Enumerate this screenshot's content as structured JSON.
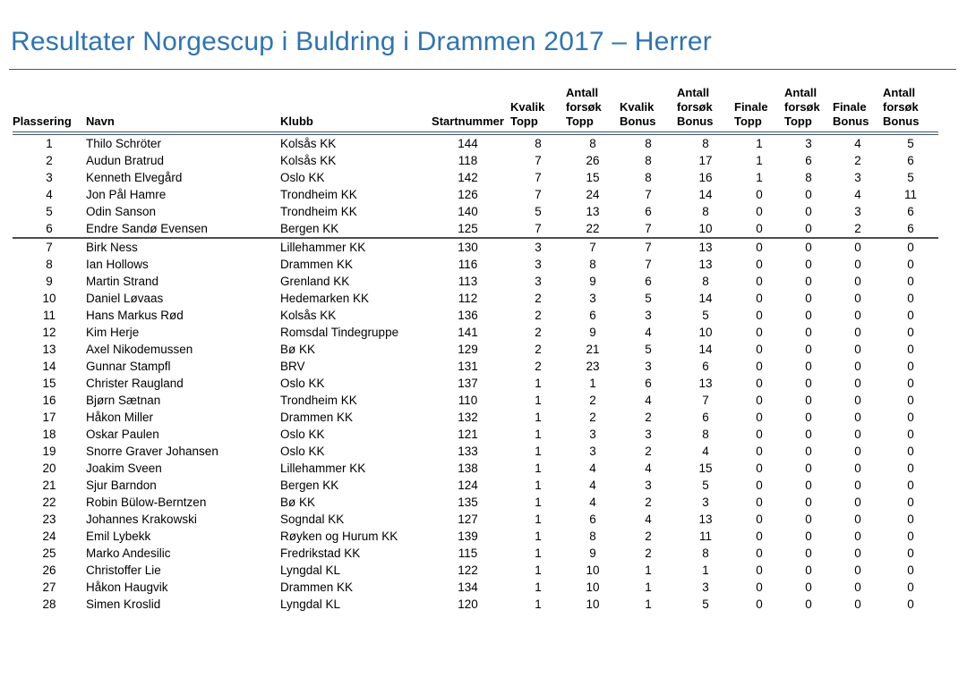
{
  "page": {
    "title": "Resultater Norgescup i Buldring i Drammen 2017 – Herrer",
    "title_color": "#2E74B5",
    "rule_color": "#44546A"
  },
  "table": {
    "columns": [
      {
        "key": "plassering",
        "label": "Plassering"
      },
      {
        "key": "navn",
        "label": "Navn"
      },
      {
        "key": "klubb",
        "label": "Klubb"
      },
      {
        "key": "startnummer",
        "label": "Startnummer"
      },
      {
        "key": "kvalik-topp",
        "label": "Kvalik Topp"
      },
      {
        "key": "antall-forsok-topp",
        "label": "Antall forsøk Topp"
      },
      {
        "key": "kvalik-bonus",
        "label": "Kvalik Bonus"
      },
      {
        "key": "antall-forsok-bonus",
        "label": "Antall forsøk Bonus"
      },
      {
        "key": "finale-topp",
        "label": "Finale Topp"
      },
      {
        "key": "finale-forsok-topp",
        "label": "Antall forsøk Topp"
      },
      {
        "key": "finale-bonus",
        "label": "Finale Bonus"
      },
      {
        "key": "finale-forsok-bonus",
        "label": "Antall forsøk Bonus"
      }
    ],
    "cutoff_after_rank": 6,
    "rows": [
      {
        "rank": 1,
        "name": "Thilo Schröter",
        "club": "Kolsås KK",
        "bib": 144,
        "scores": [
          8,
          8,
          8,
          8,
          1,
          3,
          4,
          5
        ]
      },
      {
        "rank": 2,
        "name": "Audun Bratrud",
        "club": "Kolsås KK",
        "bib": 118,
        "scores": [
          7,
          26,
          8,
          17,
          1,
          6,
          2,
          6
        ]
      },
      {
        "rank": 3,
        "name": "Kenneth Elvegård",
        "club": "Oslo KK",
        "bib": 142,
        "scores": [
          7,
          15,
          8,
          16,
          1,
          8,
          3,
          5
        ]
      },
      {
        "rank": 4,
        "name": "Jon Pål Hamre",
        "club": "Trondheim KK",
        "bib": 126,
        "scores": [
          7,
          24,
          7,
          14,
          0,
          0,
          4,
          11
        ]
      },
      {
        "rank": 5,
        "name": "Odin Sanson",
        "club": "Trondheim KK",
        "bib": 140,
        "scores": [
          5,
          13,
          6,
          8,
          0,
          0,
          3,
          6
        ]
      },
      {
        "rank": 6,
        "name": "Endre Sandø Evensen",
        "club": "Bergen KK",
        "bib": 125,
        "scores": [
          7,
          22,
          7,
          10,
          0,
          0,
          2,
          6
        ]
      },
      {
        "rank": 7,
        "name": "Birk Ness",
        "club": "Lillehammer KK",
        "bib": 130,
        "scores": [
          3,
          7,
          7,
          13,
          0,
          0,
          0,
          0
        ]
      },
      {
        "rank": 8,
        "name": "Ian Hollows",
        "club": "Drammen KK",
        "bib": 116,
        "scores": [
          3,
          8,
          7,
          13,
          0,
          0,
          0,
          0
        ]
      },
      {
        "rank": 9,
        "name": "Martin Strand",
        "club": "Grenland KK",
        "bib": 113,
        "scores": [
          3,
          9,
          6,
          8,
          0,
          0,
          0,
          0
        ]
      },
      {
        "rank": 10,
        "name": "Daniel Løvaas",
        "club": "Hedemarken KK",
        "bib": 112,
        "scores": [
          2,
          3,
          5,
          14,
          0,
          0,
          0,
          0
        ]
      },
      {
        "rank": 11,
        "name": "Hans Markus Rød",
        "club": "Kolsås KK",
        "bib": 136,
        "scores": [
          2,
          6,
          3,
          5,
          0,
          0,
          0,
          0
        ]
      },
      {
        "rank": 12,
        "name": "Kim Herje",
        "club": "Romsdal Tindegruppe",
        "bib": 141,
        "scores": [
          2,
          9,
          4,
          10,
          0,
          0,
          0,
          0
        ]
      },
      {
        "rank": 13,
        "name": "Axel Nikodemussen",
        "club": "Bø KK",
        "bib": 129,
        "scores": [
          2,
          21,
          5,
          14,
          0,
          0,
          0,
          0
        ]
      },
      {
        "rank": 14,
        "name": "Gunnar Stampfl",
        "club": "BRV",
        "bib": 131,
        "scores": [
          2,
          23,
          3,
          6,
          0,
          0,
          0,
          0
        ]
      },
      {
        "rank": 15,
        "name": "Christer Raugland",
        "club": "Oslo KK",
        "bib": 137,
        "scores": [
          1,
          1,
          6,
          13,
          0,
          0,
          0,
          0
        ]
      },
      {
        "rank": 16,
        "name": "Bjørn Sætnan",
        "club": "Trondheim KK",
        "bib": 110,
        "scores": [
          1,
          2,
          4,
          7,
          0,
          0,
          0,
          0
        ]
      },
      {
        "rank": 17,
        "name": "Håkon Miller",
        "club": "Drammen KK",
        "bib": 132,
        "scores": [
          1,
          2,
          2,
          6,
          0,
          0,
          0,
          0
        ]
      },
      {
        "rank": 18,
        "name": "Oskar Paulen",
        "club": "Oslo KK",
        "bib": 121,
        "scores": [
          1,
          3,
          3,
          8,
          0,
          0,
          0,
          0
        ]
      },
      {
        "rank": 19,
        "name": "Snorre Graver Johansen",
        "club": "Oslo KK",
        "bib": 133,
        "scores": [
          1,
          3,
          2,
          4,
          0,
          0,
          0,
          0
        ]
      },
      {
        "rank": 20,
        "name": "Joakim Sveen",
        "club": "Lillehammer KK",
        "bib": 138,
        "scores": [
          1,
          4,
          4,
          15,
          0,
          0,
          0,
          0
        ]
      },
      {
        "rank": 21,
        "name": "Sjur Barndon",
        "club": "Bergen KK",
        "bib": 124,
        "scores": [
          1,
          4,
          3,
          5,
          0,
          0,
          0,
          0
        ]
      },
      {
        "rank": 22,
        "name": "Robin Bülow-Berntzen",
        "club": "Bø KK",
        "bib": 135,
        "scores": [
          1,
          4,
          2,
          3,
          0,
          0,
          0,
          0
        ]
      },
      {
        "rank": 23,
        "name": "Johannes Krakowski",
        "club": "Sogndal KK",
        "bib": 127,
        "scores": [
          1,
          6,
          4,
          13,
          0,
          0,
          0,
          0
        ]
      },
      {
        "rank": 24,
        "name": "Emil Lybekk",
        "club": "Røyken og Hurum KK",
        "bib": 139,
        "scores": [
          1,
          8,
          2,
          11,
          0,
          0,
          0,
          0
        ]
      },
      {
        "rank": 25,
        "name": "Marko Andesilic",
        "club": "Fredrikstad KK",
        "bib": 115,
        "scores": [
          1,
          9,
          2,
          8,
          0,
          0,
          0,
          0
        ]
      },
      {
        "rank": 26,
        "name": "Christoffer Lie",
        "club": "Lyngdal KL",
        "bib": 122,
        "scores": [
          1,
          10,
          1,
          1,
          0,
          0,
          0,
          0
        ]
      },
      {
        "rank": 27,
        "name": "Håkon Haugvik",
        "club": "Drammen KK",
        "bib": 134,
        "scores": [
          1,
          10,
          1,
          3,
          0,
          0,
          0,
          0
        ]
      },
      {
        "rank": 28,
        "name": "Simen Kroslid",
        "club": "Lyngdal KL",
        "bib": 120,
        "scores": [
          1,
          10,
          1,
          5,
          0,
          0,
          0,
          0
        ]
      }
    ]
  }
}
